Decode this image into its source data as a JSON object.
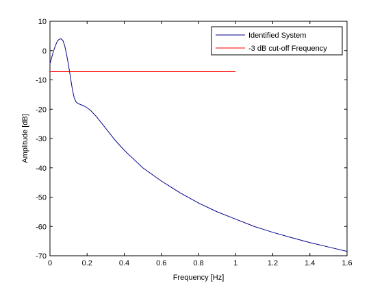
{
  "chart_data": {
    "type": "line",
    "title": "",
    "xlabel": "Frequency [Hz]",
    "ylabel": "Amplitude [dB]",
    "xlim": [
      0,
      1.6
    ],
    "ylim": [
      -70,
      10
    ],
    "x_ticks": [
      0,
      0.2,
      0.4,
      0.6,
      0.8,
      1,
      1.2,
      1.4,
      1.6
    ],
    "x_tick_labels": [
      "0",
      "0.2",
      "0.4",
      "0.6",
      "0.8",
      "1",
      "1.2",
      "1.4",
      "1.6"
    ],
    "y_ticks": [
      10,
      0,
      -10,
      -20,
      -30,
      -40,
      -50,
      -60,
      -70
    ],
    "y_tick_labels": [
      "10",
      "0",
      "-10",
      "-20",
      "-30",
      "-40",
      "-50",
      "-60",
      "-70"
    ],
    "grid": false,
    "legend_position": "top-right",
    "series": [
      {
        "name": "Identified System",
        "color": "#00008B",
        "x": [
          0,
          0.01,
          0.02,
          0.03,
          0.04,
          0.05,
          0.06,
          0.07,
          0.08,
          0.09,
          0.1,
          0.11,
          0.12,
          0.13,
          0.14,
          0.15,
          0.16,
          0.18,
          0.2,
          0.22,
          0.25,
          0.3,
          0.35,
          0.4,
          0.45,
          0.5,
          0.6,
          0.7,
          0.8,
          0.9,
          1.0,
          1.1,
          1.2,
          1.3,
          1.4,
          1.5,
          1.6
        ],
        "y": [
          -4.5,
          -2.2,
          0,
          1.8,
          3.2,
          3.9,
          4.0,
          3.4,
          1.5,
          -1.5,
          -5.0,
          -9.0,
          -13.0,
          -16.0,
          -17.5,
          -18.0,
          -18.3,
          -18.8,
          -19.5,
          -20.5,
          -22.5,
          -26.5,
          -30.5,
          -34.0,
          -37.0,
          -40.0,
          -44.5,
          -48.5,
          -52.0,
          -55.0,
          -57.5,
          -60.0,
          -62.0,
          -63.8,
          -65.5,
          -67.0,
          -68.5
        ]
      },
      {
        "name": "-3 dB cut-off Frequency",
        "color": "#FF0000",
        "x": [
          0,
          1.0
        ],
        "y": [
          -7.2,
          -7.2
        ]
      }
    ]
  }
}
